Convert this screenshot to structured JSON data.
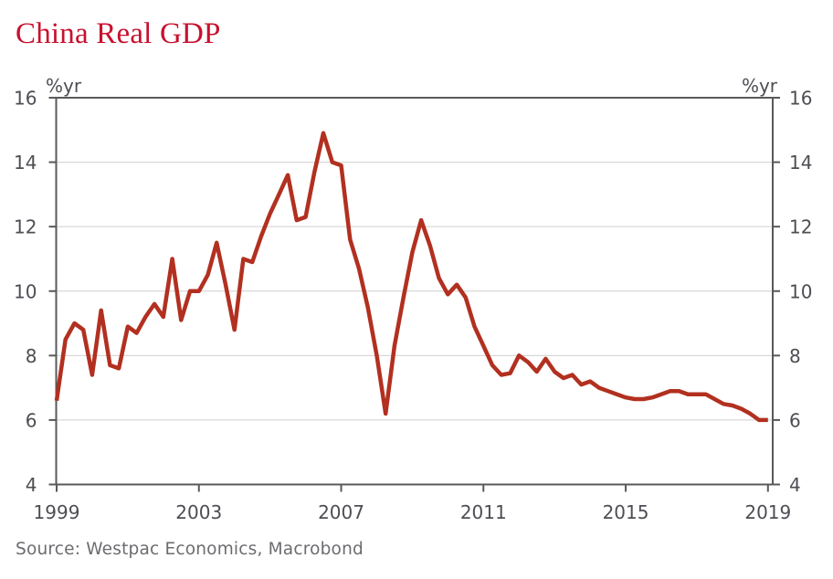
{
  "header": {
    "title": "China Real GDP"
  },
  "footer": {
    "source": "Source: Westpac Economics, Macrobond"
  },
  "colors": {
    "title": "#C8102E",
    "line": "#B23020",
    "axis": "#58595B",
    "axis_text": "#4D4E53",
    "grid": "#D8D8D8",
    "source_text": "#6B6C6F",
    "background": "#FFFFFF"
  },
  "chart_data": {
    "type": "line",
    "title": "China Real GDP",
    "unit_left": "%yr",
    "unit_right": "%yr",
    "xlabel": "",
    "ylabel": "%yr",
    "ylim": [
      4,
      16
    ],
    "y_ticks": [
      16,
      14,
      12,
      10,
      8,
      6,
      4
    ],
    "x_tick_labels": [
      "1999",
      "2003",
      "2007",
      "2011",
      "2015",
      "2019"
    ],
    "x_tick_point_indices": [
      0,
      16,
      32,
      48,
      64,
      80
    ],
    "frequency": "quarterly",
    "x_start": "1999 Q1",
    "x_end": "2019 Q1",
    "grid": "horizontal",
    "legend": "none",
    "series": [
      {
        "name": "China Real GDP, %yr",
        "color": "#B23020",
        "values": [
          6.6,
          8.5,
          9.0,
          8.8,
          7.4,
          9.4,
          7.7,
          7.6,
          8.9,
          8.7,
          9.2,
          9.6,
          9.2,
          11.0,
          9.1,
          10.0,
          10.0,
          10.5,
          11.5,
          10.2,
          8.8,
          11.0,
          10.9,
          11.7,
          12.4,
          13.0,
          13.6,
          12.2,
          12.3,
          13.7,
          14.9,
          14.0,
          13.9,
          11.6,
          10.7,
          9.5,
          8.0,
          6.2,
          8.3,
          9.8,
          11.2,
          12.2,
          11.4,
          10.4,
          9.9,
          10.2,
          9.8,
          8.9,
          8.3,
          7.7,
          7.4,
          7.45,
          8.0,
          7.8,
          7.5,
          7.9,
          7.5,
          7.3,
          7.4,
          7.1,
          7.2,
          7.0,
          6.9,
          6.8,
          6.7,
          6.65,
          6.65,
          6.7,
          6.8,
          6.9,
          6.9,
          6.8,
          6.8,
          6.8,
          6.65,
          6.5,
          6.45,
          6.35,
          6.2,
          6.0,
          6.0
        ]
      }
    ]
  }
}
